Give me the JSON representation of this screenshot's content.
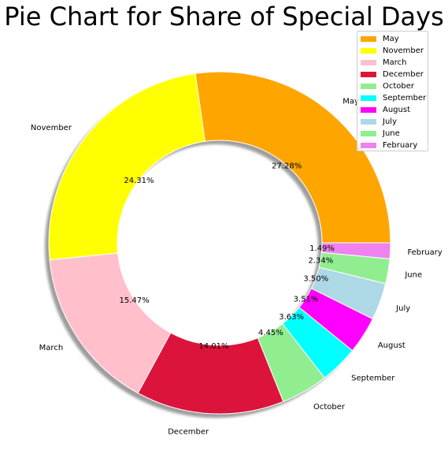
{
  "chart_data": {
    "type": "pie",
    "title": "Pie Chart for Share of Special Days",
    "style": "donut",
    "shadow": true,
    "legend_position": "top-right",
    "slices": [
      {
        "label": "May",
        "value": 27.28,
        "pct_text": "27.28%",
        "color": "#FFA500"
      },
      {
        "label": "November",
        "value": 24.31,
        "pct_text": "24.31%",
        "color": "#FFFF00"
      },
      {
        "label": "March",
        "value": 15.47,
        "pct_text": "15.47%",
        "color": "#FFC0CB"
      },
      {
        "label": "December",
        "value": 14.01,
        "pct_text": "14.01%",
        "color": "#DC143C"
      },
      {
        "label": "October",
        "value": 4.45,
        "pct_text": "4.45%",
        "color": "#90EE90"
      },
      {
        "label": "September",
        "value": 3.63,
        "pct_text": "3.63%",
        "color": "#00FFFF"
      },
      {
        "label": "August",
        "value": 3.51,
        "pct_text": "3.51%",
        "color": "#FF00FF"
      },
      {
        "label": "July",
        "value": 3.5,
        "pct_text": "3.50%",
        "color": "#ADD8E6"
      },
      {
        "label": "June",
        "value": 2.34,
        "pct_text": "2.34%",
        "color": "#90EE90"
      },
      {
        "label": "February",
        "value": 1.49,
        "pct_text": "1.49%",
        "color": "#EE82EE"
      }
    ]
  }
}
